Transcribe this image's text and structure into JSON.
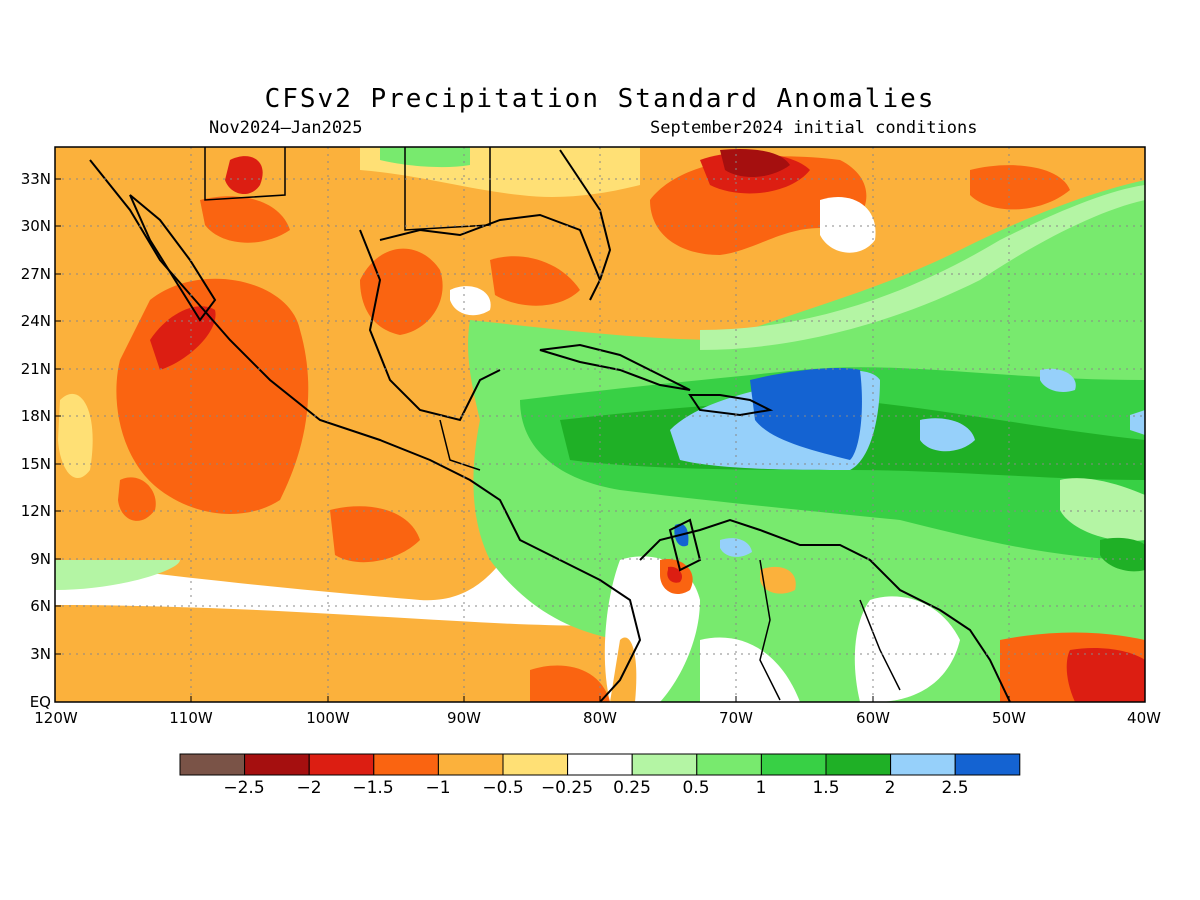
{
  "title": "CFSv2 Precipitation Standard Anomalies",
  "period": "Nov2024–Jan2025",
  "init": "September2024 initial conditions",
  "lat_labels": [
    "33N",
    "30N",
    "27N",
    "24N",
    "21N",
    "18N",
    "15N",
    "12N",
    "9N",
    "6N",
    "3N",
    "EQ"
  ],
  "lon_labels": [
    "120W",
    "110W",
    "100W",
    "90W",
    "80W",
    "70W",
    "60W",
    "50W",
    "40W"
  ],
  "legend": {
    "colors": [
      "#7a5347",
      "#a50f0f",
      "#dc1e12",
      "#fa6411",
      "#fbb13c",
      "#ffe075",
      "#ffffff",
      "#b4f5a4",
      "#78ea6e",
      "#38d045",
      "#1fb026",
      "#96d0fa",
      "#1463d2"
    ],
    "labels": [
      "−2.5",
      "−2",
      "−1.5",
      "−1",
      "−0.5",
      "−0.25",
      "0.25",
      "0.5",
      "1",
      "1.5",
      "2",
      "2.5"
    ]
  }
}
